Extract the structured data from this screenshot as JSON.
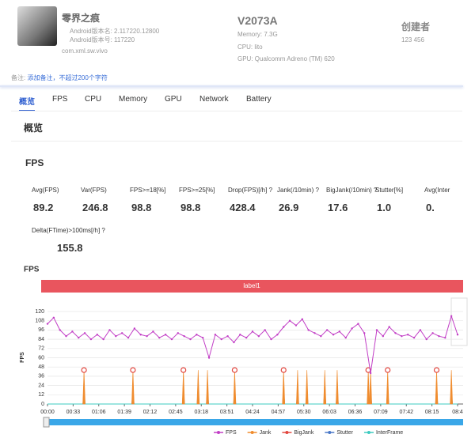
{
  "header": {
    "app_name": "零界之痕",
    "version_name": "Android版本名: 2.117220.12800",
    "version_code": "Android版本号: 117220",
    "package": "com.xml.sw.vivo",
    "device": "V2073A",
    "memory": "Memory: 7.3G",
    "cpu": "CPU: lito",
    "gpu": "GPU: Qualcomm Adreno (TM) 620",
    "creator_label": "创建者",
    "creator": "123 456",
    "note_label": "备注:",
    "note_hint": "添加备注，不超过200个字符"
  },
  "tabs": [
    "概览",
    "FPS",
    "CPU",
    "Memory",
    "GPU",
    "Network",
    "Battery"
  ],
  "section_title": "概览",
  "fps_section": {
    "title": "FPS",
    "metrics": [
      {
        "label": "Avg(FPS)",
        "value": "89.2"
      },
      {
        "label": "Var(FPS)",
        "value": "246.8"
      },
      {
        "label": "FPS>=18[%]",
        "value": "98.8"
      },
      {
        "label": "FPS>=25[%]",
        "value": "98.8"
      },
      {
        "label": "Drop(FPS)[/h] ?",
        "value": "428.4"
      },
      {
        "label": "Jank(/10min) ?",
        "value": "26.9"
      },
      {
        "label": "BigJank(/10min) ?",
        "value": "17.6"
      },
      {
        "label": "Stutter[%]",
        "value": "1.0"
      },
      {
        "label": "Avg(Inter",
        "value": "0."
      }
    ],
    "metrics_row2": [
      {
        "label": "Delta(FTime)>100ms[/h] ?",
        "value": "155.8"
      }
    ]
  },
  "chart_data": {
    "type": "line",
    "title": "FPS",
    "ylabel": "FPS",
    "label_bar": "label1",
    "grid": true,
    "xlim": [
      0,
      528
    ],
    "ylim": [
      0,
      120
    ],
    "xticks": [
      {
        "value": 0,
        "label": "00:00"
      },
      {
        "value": 33,
        "label": "00:33"
      },
      {
        "value": 66,
        "label": "01:06"
      },
      {
        "value": 99,
        "label": "01:39"
      },
      {
        "value": 132,
        "label": "02:12"
      },
      {
        "value": 165,
        "label": "02:45"
      },
      {
        "value": 198,
        "label": "03:18"
      },
      {
        "value": 231,
        "label": "03:51"
      },
      {
        "value": 264,
        "label": "04:24"
      },
      {
        "value": 297,
        "label": "04:57"
      },
      {
        "value": 330,
        "label": "05:30"
      },
      {
        "value": 363,
        "label": "06:03"
      },
      {
        "value": 396,
        "label": "06:36"
      },
      {
        "value": 429,
        "label": "07:09"
      },
      {
        "value": 462,
        "label": "07:42"
      },
      {
        "value": 495,
        "label": "08:15"
      },
      {
        "value": 528,
        "label": "08:4"
      }
    ],
    "yticks": [
      0,
      12,
      24,
      36,
      48,
      60,
      72,
      84,
      96,
      108,
      120
    ],
    "series": [
      {
        "name": "FPS",
        "color": "#c23fc6",
        "mark": "line",
        "x": [
          0,
          8,
          16,
          24,
          32,
          40,
          48,
          56,
          64,
          72,
          80,
          88,
          96,
          104,
          112,
          120,
          128,
          136,
          144,
          152,
          160,
          168,
          176,
          184,
          192,
          200,
          208,
          216,
          224,
          232,
          240,
          248,
          256,
          264,
          272,
          280,
          288,
          296,
          304,
          312,
          320,
          328,
          336,
          344,
          352,
          360,
          368,
          376,
          384,
          392,
          400,
          408,
          416,
          424,
          432,
          440,
          448,
          456,
          464,
          472,
          480,
          488,
          496,
          504,
          512,
          520,
          528
        ],
        "values": [
          104,
          112,
          96,
          88,
          94,
          86,
          92,
          84,
          90,
          84,
          96,
          88,
          92,
          86,
          98,
          90,
          88,
          94,
          86,
          90,
          84,
          92,
          88,
          84,
          90,
          86,
          60,
          90,
          84,
          88,
          80,
          90,
          86,
          94,
          88,
          96,
          84,
          90,
          100,
          108,
          102,
          110,
          96,
          92,
          88,
          96,
          90,
          94,
          86,
          98,
          104,
          92,
          40,
          96,
          88,
          100,
          92,
          88,
          90,
          86,
          96,
          84,
          92,
          88,
          86,
          114,
          90
        ]
      },
      {
        "name": "Jank",
        "color": "#f08c2e",
        "mark": "spike",
        "x": [
          47,
          110,
          175,
          194,
          206,
          241,
          304,
          322,
          334,
          357,
          373,
          413,
          416,
          438,
          501,
          520
        ],
        "values": [
          44,
          44,
          44,
          44,
          44,
          44,
          44,
          44,
          44,
          44,
          44,
          44,
          44,
          44,
          44,
          44
        ]
      },
      {
        "name": "BigJank",
        "color": "#e2473f",
        "mark": "marker",
        "x": [
          47,
          110,
          175,
          241,
          304,
          413,
          438,
          501
        ],
        "values": [
          44,
          44,
          44,
          44,
          44,
          44,
          44,
          44
        ]
      },
      {
        "name": "Stutter",
        "color": "#4a78c8",
        "mark": "spike",
        "x": [
          47,
          110,
          175,
          194,
          206,
          241,
          304,
          322,
          334,
          357,
          373,
          413,
          416,
          438,
          501,
          520
        ],
        "values": [
          20,
          20,
          20,
          20,
          20,
          20,
          20,
          20,
          20,
          20,
          20,
          20,
          20,
          20,
          20,
          20
        ]
      },
      {
        "name": "InterFrame",
        "color": "#3ecbc0",
        "mark": "line",
        "x": [
          0,
          528
        ],
        "values": [
          0,
          0
        ]
      }
    ]
  }
}
